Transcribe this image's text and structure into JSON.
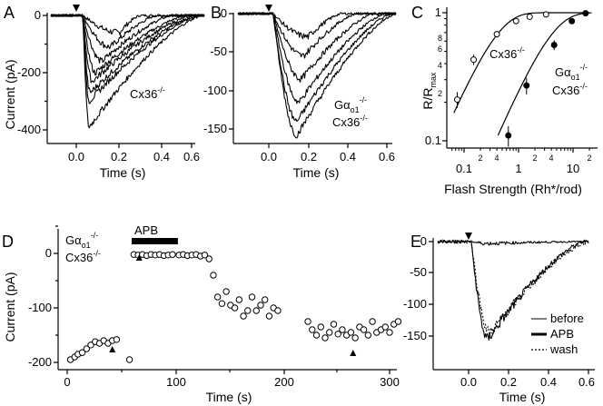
{
  "panels": {
    "A": {
      "label": "A",
      "ylabel": "Current (pA)",
      "xlabel": "Time (s)",
      "xticks": [
        "0.0",
        "0.2",
        "0.4",
        "0.6"
      ],
      "yticks": [
        "0",
        "-200",
        "-400"
      ],
      "genotype": "Cx36",
      "genotype_sup": "-/-"
    },
    "B": {
      "label": "B",
      "xlabel": "Time (s)",
      "xticks": [
        "0.0",
        "0.2",
        "0.4",
        "0.6"
      ],
      "yticks": [
        "0",
        "-50",
        "-100",
        "-150"
      ],
      "genotype_line1": "Gα",
      "genotype_line1_sub": "o1",
      "genotype_line1_sup": "-/-",
      "genotype_line2": "Cx36",
      "genotype_line2_sup": "-/-"
    },
    "C": {
      "label": "C",
      "ylabel": "R/R",
      "ylabel_sub": "max",
      "xlabel": "Flash Strength (Rh*/rod)",
      "xticks": [
        "0.1",
        "1",
        "10"
      ],
      "xminor_labels": [
        "2",
        "4",
        "2",
        "4",
        "2"
      ],
      "yticks": [
        "0.1",
        "1"
      ],
      "yminor_labels": [
        "2",
        "4",
        "6",
        "8"
      ],
      "series_1_label": "Cx36",
      "series_1_sup": "-/-",
      "series_2_line1": "Gα",
      "series_2_line1_sub": "o1",
      "series_2_line1_sup": "-/-",
      "series_2_line2": "Cx36",
      "series_2_line2_sup": "-/-"
    },
    "D": {
      "label": "D",
      "ylabel": "Current (pA)",
      "xlabel": "Time (s)",
      "xticks": [
        "0",
        "100",
        "200",
        "300"
      ],
      "yticks": [
        "0",
        "-100",
        "-200"
      ],
      "drug_label": "APB",
      "genotype_line1": "Gα",
      "genotype_line1_sub": "o1",
      "genotype_line1_sup": "-/-",
      "genotype_line2": "Cx36",
      "genotype_line2_sup": "-/-"
    },
    "E": {
      "label": "E",
      "xlabel": "Time (s)",
      "xticks": [
        "0.0",
        "0.2",
        "0.4",
        "0.6"
      ],
      "yticks": [
        "0",
        "-50",
        "-100",
        "-150"
      ],
      "legend": [
        "before",
        "APB",
        "wash"
      ]
    }
  },
  "chart_data": [
    {
      "panel": "A",
      "type": "line",
      "title": "",
      "xlabel": "Time (s)",
      "ylabel": "Current (pA)",
      "xlim": [
        -0.12,
        0.6
      ],
      "ylim": [
        -440,
        15
      ],
      "flash_time_s": 0.0,
      "peak_times_s": [
        0.2,
        0.16,
        0.12,
        0.09,
        0.075,
        0.065,
        0.06,
        0.06
      ],
      "peak_amplitudes_pA": [
        -60,
        -110,
        -160,
        -200,
        -230,
        -270,
        -300,
        -390
      ],
      "recovery_end_s": [
        0.3,
        0.38,
        0.45,
        0.52,
        0.55,
        0.57,
        0.58,
        0.59
      ]
    },
    {
      "panel": "B",
      "type": "line",
      "xlabel": "Time (s)",
      "ylabel": "Current (pA)",
      "xlim": [
        -0.12,
        0.6
      ],
      "ylim": [
        -170,
        8
      ],
      "flash_time_s": 0.0,
      "peak_times_s": [
        0.2,
        0.18,
        0.17,
        0.16,
        0.15,
        0.15
      ],
      "peak_amplitudes_pA": [
        -30,
        -55,
        -85,
        -115,
        -140,
        -158
      ],
      "recovery_end_s": [
        0.35,
        0.42,
        0.5,
        0.55,
        0.58,
        0.6
      ]
    },
    {
      "panel": "C",
      "type": "scatter",
      "xlabel": "Flash Strength (Rh*/rod)",
      "ylabel": "R/Rmax",
      "xscale": "log",
      "yscale": "log",
      "xlim": [
        0.05,
        25
      ],
      "ylim": [
        0.08,
        1.1
      ],
      "series": [
        {
          "name": "Cx36-/-",
          "marker": "open circle",
          "x": [
            0.075,
            0.15,
            0.4,
            0.9,
            1.6,
            3.2
          ],
          "y": [
            0.21,
            0.43,
            0.68,
            0.86,
            0.93,
            0.97
          ],
          "err": [
            0.03,
            0.04,
            0.04,
            0.03,
            0.02,
            0.02
          ]
        },
        {
          "name": "Gαo1-/- Cx36-/-",
          "marker": "filled circle",
          "x": [
            0.65,
            1.4,
            4.5,
            9.5,
            17
          ],
          "y": [
            0.11,
            0.27,
            0.56,
            0.86,
            0.99
          ],
          "err": [
            0.02,
            0.04,
            0.05,
            0.03,
            0.01
          ]
        }
      ]
    },
    {
      "panel": "D",
      "type": "scatter",
      "xlabel": "Time (s)",
      "ylabel": "Current (pA)",
      "xlim": [
        -5,
        315
      ],
      "ylim": [
        -215,
        45
      ],
      "apb_interval_s": [
        60,
        103
      ],
      "markers_s": [
        42,
        67,
        266
      ],
      "x": [
        3,
        7,
        10,
        14,
        18,
        22,
        26,
        30,
        34,
        38,
        42,
        46,
        58,
        62,
        66,
        70,
        74,
        78,
        82,
        86,
        90,
        94,
        98,
        104,
        108,
        112,
        116,
        120,
        124,
        128,
        132,
        136,
        140,
        144,
        148,
        152,
        156,
        160,
        164,
        168,
        172,
        176,
        180,
        184,
        188,
        192,
        196,
        224,
        228,
        232,
        236,
        240,
        244,
        248,
        252,
        256,
        260,
        264,
        268,
        272,
        276,
        280,
        284,
        288,
        292,
        296,
        300,
        304,
        308
      ],
      "y": [
        -195,
        -190,
        -185,
        -182,
        -175,
        -168,
        -162,
        -165,
        -160,
        -165,
        -160,
        -158,
        -195,
        -2,
        -3,
        -2,
        -4,
        -2,
        -3,
        -2,
        -4,
        -3,
        -2,
        -3,
        -2,
        -4,
        -3,
        -2,
        -5,
        -3,
        -10,
        -40,
        -80,
        -92,
        -70,
        -95,
        -100,
        -85,
        -115,
        -105,
        -80,
        -105,
        -95,
        -85,
        -115,
        -100,
        -105,
        -125,
        -140,
        -150,
        -135,
        -155,
        -145,
        -130,
        -148,
        -140,
        -150,
        -145,
        -155,
        -135,
        -140,
        -150,
        -125,
        -145,
        -140,
        -135,
        -145,
        -130,
        -125
      ]
    },
    {
      "panel": "E",
      "type": "line",
      "xlabel": "Time (s)",
      "ylabel": "Current (pA)",
      "xlim": [
        -0.12,
        0.6
      ],
      "ylim": [
        -165,
        8
      ],
      "flash_time_s": 0.0,
      "series": [
        {
          "name": "before",
          "peak_time_s": 0.12,
          "peak_pA": -155,
          "recovery_end_s": 0.58
        },
        {
          "name": "APB",
          "peak_time_s": 0.12,
          "peak_pA": -3,
          "recovery_end_s": 0.58
        },
        {
          "name": "wash",
          "peak_time_s": 0.13,
          "peak_pA": -145,
          "recovery_end_s": 0.6
        }
      ]
    }
  ]
}
